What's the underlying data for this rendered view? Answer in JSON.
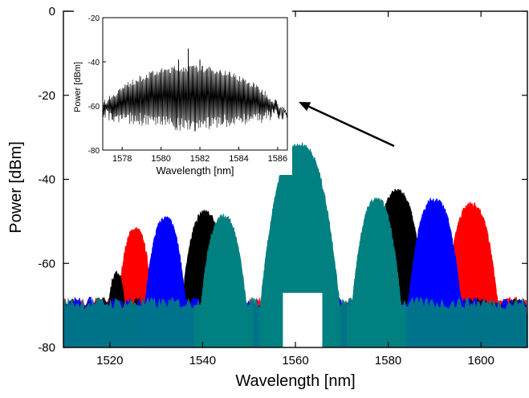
{
  "chart_data": [
    {
      "type": "line",
      "role": "main",
      "xlabel": "Wavelength [nm]",
      "ylabel": "Power [dBm]",
      "xlim": [
        1510,
        1610
      ],
      "ylim": [
        -80,
        0
      ],
      "x_ticks": [
        1520,
        1540,
        1560,
        1580,
        1600
      ],
      "y_ticks": [
        0,
        -20,
        -40,
        -60,
        -80
      ],
      "x_tick_labels": [
        "1520",
        "1540",
        "1560",
        "1580",
        "1600"
      ],
      "y_tick_labels": [
        "0",
        "-20",
        "-40",
        "-60",
        "-80"
      ],
      "noise_floor_dbm": -70,
      "grid": false,
      "series": [
        {
          "color": "#ff0000",
          "peaks": [
            {
              "center": 1525.5,
              "peak": -52,
              "width": 4.5
            },
            {
              "center": 1598,
              "peak": -46,
              "width": 6
            }
          ]
        },
        {
          "color": "#000000",
          "peaks": [
            {
              "center": 1521.5,
              "peak": -62.5,
              "width": 3
            },
            {
              "center": 1540.5,
              "peak": -48,
              "width": 5.5
            },
            {
              "center": 1582,
              "peak": -43,
              "width": 6
            }
          ]
        },
        {
          "color": "#0000ff",
          "peaks": [
            {
              "center": 1532,
              "peak": -49.5,
              "width": 5
            },
            {
              "center": 1590,
              "peak": -45,
              "width": 6
            }
          ]
        },
        {
          "color": "#008080",
          "peaks": [
            {
              "center": 1544.5,
              "peak": -49,
              "width": 5.5
            },
            {
              "center": 1561,
              "peak": -32,
              "width": 7.5
            },
            {
              "center": 1577.5,
              "peak": -45,
              "width": 5.5
            }
          ]
        }
      ]
    },
    {
      "type": "line",
      "role": "inset",
      "xlabel": "Wavelength [nm]",
      "ylabel": "Power [dBm]",
      "xlim": [
        1577,
        1586.5
      ],
      "ylim": [
        -80,
        -20
      ],
      "x_ticks": [
        1578,
        1580,
        1582,
        1584,
        1586
      ],
      "y_ticks": [
        -20,
        -40,
        -60,
        -80
      ],
      "x_tick_labels": [
        "1578",
        "1580",
        "1582",
        "1584",
        "1586"
      ],
      "y_tick_labels": [
        "-20",
        "-40",
        "-60",
        "-80"
      ],
      "envelope_peak_dbm": -43,
      "center_wavelength": 1581.5,
      "center_spike_dbm": -34,
      "series": [
        {
          "color": "#000000"
        }
      ]
    }
  ]
}
